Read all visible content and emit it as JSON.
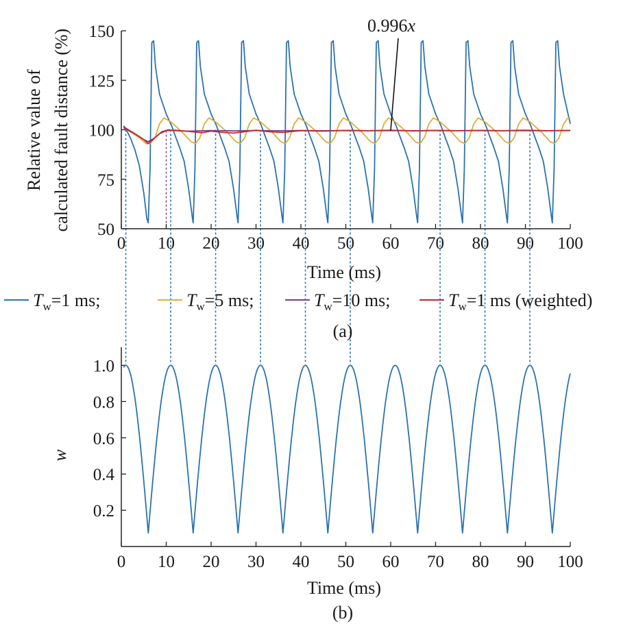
{
  "chart_data": [
    {
      "panel": "(a)",
      "type": "line",
      "xlabel": "Time (ms)",
      "ylabel_line1": "Relative value of",
      "ylabel_line2": "calculated fault distance (%)",
      "xlim": [
        0,
        100
      ],
      "ylim": [
        50,
        150
      ],
      "xticks": [
        0,
        10,
        20,
        30,
        40,
        50,
        60,
        70,
        80,
        90,
        100
      ],
      "yticks": [
        50,
        75,
        100,
        125,
        150
      ],
      "annotation": {
        "text": "0.996",
        "italic_suffix": "x",
        "points_to": [
          60,
          99.6
        ]
      },
      "series": [
        {
          "name": "Tw=1 ms",
          "label_main": "T",
          "label_sub": "w",
          "label_rest": "=1 ms;",
          "color": "#2a72b0",
          "points": [
            [
              0.5,
              102
            ],
            [
              1,
              100.5
            ],
            [
              2,
              96
            ],
            [
              3,
              90
            ],
            [
              4,
              82
            ],
            [
              5,
              68
            ],
            [
              5.7,
              55
            ],
            [
              6,
              53
            ],
            [
              6.4,
              80
            ],
            [
              6.8,
              144
            ],
            [
              7.2,
              145
            ],
            [
              7.6,
              132
            ],
            [
              8.5,
              118
            ],
            [
              10,
              108
            ],
            [
              11.2,
              102
            ],
            [
              12,
              97
            ],
            [
              13,
              91
            ],
            [
              14,
              84
            ],
            [
              15,
              70
            ],
            [
              15.8,
              56
            ],
            [
              16,
              53
            ],
            [
              16.4,
              80
            ],
            [
              16.8,
              144
            ],
            [
              17.2,
              145
            ],
            [
              17.6,
              132
            ],
            [
              18.5,
              118
            ],
            [
              20,
              108
            ],
            [
              21.2,
              102
            ],
            [
              22,
              97
            ],
            [
              23,
              91
            ],
            [
              24,
              84
            ],
            [
              25,
              70
            ],
            [
              25.8,
              56
            ],
            [
              26,
              53
            ],
            [
              26.4,
              80
            ],
            [
              26.8,
              144
            ],
            [
              27.2,
              145
            ],
            [
              27.6,
              132
            ],
            [
              28.5,
              118
            ],
            [
              30,
              108
            ],
            [
              31.2,
              102
            ],
            [
              32,
              97
            ],
            [
              33,
              91
            ],
            [
              34,
              84
            ],
            [
              35,
              70
            ],
            [
              35.8,
              56
            ],
            [
              36,
              53
            ],
            [
              36.4,
              80
            ],
            [
              36.8,
              144
            ],
            [
              37.2,
              145
            ],
            [
              37.6,
              132
            ],
            [
              38.5,
              118
            ],
            [
              40,
              108
            ],
            [
              41.2,
              102
            ],
            [
              42,
              97
            ],
            [
              43,
              91
            ],
            [
              44,
              84
            ],
            [
              45,
              70
            ],
            [
              45.8,
              56
            ],
            [
              46,
              53
            ],
            [
              46.4,
              80
            ],
            [
              46.8,
              144
            ],
            [
              47.2,
              145
            ],
            [
              47.6,
              132
            ],
            [
              48.5,
              118
            ],
            [
              50,
              108
            ],
            [
              51.2,
              102
            ],
            [
              52,
              97
            ],
            [
              53,
              91
            ],
            [
              54,
              84
            ],
            [
              55,
              70
            ],
            [
              55.8,
              56
            ],
            [
              56,
              53
            ],
            [
              56.4,
              80
            ],
            [
              56.8,
              144
            ],
            [
              57.2,
              145
            ],
            [
              57.6,
              132
            ],
            [
              58.5,
              118
            ],
            [
              60,
              108
            ],
            [
              61.2,
              102
            ],
            [
              62,
              97
            ],
            [
              63,
              91
            ],
            [
              64,
              84
            ],
            [
              65,
              70
            ],
            [
              65.8,
              56
            ],
            [
              66,
              53
            ],
            [
              66.4,
              80
            ],
            [
              66.8,
              144
            ],
            [
              67.2,
              145
            ],
            [
              67.6,
              132
            ],
            [
              68.5,
              118
            ],
            [
              70,
              108
            ],
            [
              71.2,
              102
            ],
            [
              72,
              97
            ],
            [
              73,
              91
            ],
            [
              74,
              84
            ],
            [
              75,
              70
            ],
            [
              75.8,
              56
            ],
            [
              76,
              53
            ],
            [
              76.4,
              80
            ],
            [
              76.8,
              144
            ],
            [
              77.2,
              145
            ],
            [
              77.6,
              132
            ],
            [
              78.5,
              118
            ],
            [
              80,
              108
            ],
            [
              81.2,
              102
            ],
            [
              82,
              97
            ],
            [
              83,
              91
            ],
            [
              84,
              84
            ],
            [
              85,
              70
            ],
            [
              85.8,
              56
            ],
            [
              86,
              53
            ],
            [
              86.4,
              80
            ],
            [
              86.8,
              144
            ],
            [
              87.2,
              145
            ],
            [
              87.6,
              132
            ],
            [
              88.5,
              118
            ],
            [
              90,
              108
            ],
            [
              91.2,
              102
            ],
            [
              92,
              97
            ],
            [
              93,
              91
            ],
            [
              94,
              84
            ],
            [
              95,
              70
            ],
            [
              95.8,
              56
            ],
            [
              96,
              53
            ],
            [
              96.4,
              80
            ],
            [
              96.8,
              144
            ],
            [
              97.2,
              145
            ],
            [
              97.6,
              132
            ],
            [
              98.5,
              118
            ],
            [
              100,
              103
            ]
          ]
        },
        {
          "name": "Tw=5 ms",
          "label_main": "T",
          "label_sub": "w",
          "label_rest": "=5 ms;",
          "color": "#e0ac3a",
          "points": [
            [
              0.5,
              101
            ],
            [
              2,
              99
            ],
            [
              4,
              96
            ],
            [
              5.5,
              93
            ],
            [
              6.5,
              93
            ],
            [
              7.5,
              96
            ],
            [
              8.5,
              103
            ],
            [
              9.5,
              106
            ],
            [
              11,
              104
            ],
            [
              13.5,
              99
            ],
            [
              15.5,
              94
            ],
            [
              16.5,
              93
            ],
            [
              17.5,
              96
            ],
            [
              18.5,
              103
            ],
            [
              19.5,
              106
            ],
            [
              21,
              104
            ],
            [
              23.5,
              99
            ],
            [
              25.5,
              94
            ],
            [
              26.5,
              93
            ],
            [
              27.5,
              96
            ],
            [
              28.5,
              103
            ],
            [
              29.5,
              106
            ],
            [
              31,
              104
            ],
            [
              33.5,
              99
            ],
            [
              35.5,
              94
            ],
            [
              36.5,
              93
            ],
            [
              37.5,
              96
            ],
            [
              38.5,
              103
            ],
            [
              39.5,
              106
            ],
            [
              41,
              104
            ],
            [
              43.5,
              99
            ],
            [
              45.5,
              94
            ],
            [
              46.5,
              93
            ],
            [
              47.5,
              96
            ],
            [
              48.5,
              103
            ],
            [
              49.5,
              106
            ],
            [
              51,
              104
            ],
            [
              53.5,
              99
            ],
            [
              55.5,
              94
            ],
            [
              56.5,
              93
            ],
            [
              57.5,
              96
            ],
            [
              58.5,
              103
            ],
            [
              59.5,
              106
            ],
            [
              61,
              104
            ],
            [
              63.5,
              99
            ],
            [
              65.5,
              94
            ],
            [
              66.5,
              93
            ],
            [
              67.5,
              96
            ],
            [
              68.5,
              103
            ],
            [
              69.5,
              106
            ],
            [
              71,
              104
            ],
            [
              73.5,
              99
            ],
            [
              75.5,
              94
            ],
            [
              76.5,
              93
            ],
            [
              77.5,
              96
            ],
            [
              78.5,
              103
            ],
            [
              79.5,
              106
            ],
            [
              81,
              104
            ],
            [
              83.5,
              99
            ],
            [
              85.5,
              94
            ],
            [
              86.5,
              93
            ],
            [
              87.5,
              96
            ],
            [
              88.5,
              103
            ],
            [
              89.5,
              106
            ],
            [
              91,
              104
            ],
            [
              93.5,
              99
            ],
            [
              95.5,
              94
            ],
            [
              96.5,
              93
            ],
            [
              97.5,
              96
            ],
            [
              98.5,
              103
            ],
            [
              99.5,
              106
            ],
            [
              100,
              106
            ]
          ]
        },
        {
          "name": "Tw=10 ms",
          "label_main": "T",
          "label_sub": "w",
          "label_rest": "=10 ms;",
          "color": "#7a3d8c",
          "points": [
            [
              0.5,
              101
            ],
            [
              3,
              98
            ],
            [
              5,
              95
            ],
            [
              6,
              94
            ],
            [
              7.5,
              96
            ],
            [
              9,
              99
            ],
            [
              10.5,
              100
            ],
            [
              12,
              99.5
            ],
            [
              15,
              99.3
            ],
            [
              20,
              99.6
            ],
            [
              25,
              99.4
            ],
            [
              30,
              99.6
            ],
            [
              35,
              99.5
            ],
            [
              40,
              99.6
            ],
            [
              45,
              99.5
            ],
            [
              50,
              99.6
            ],
            [
              55,
              99.5
            ],
            [
              60,
              99.6
            ],
            [
              65,
              99.5
            ],
            [
              70,
              99.6
            ],
            [
              75,
              99.5
            ],
            [
              80,
              99.6
            ],
            [
              85,
              99.5
            ],
            [
              90,
              99.6
            ],
            [
              95,
              99.5
            ],
            [
              100,
              99.6
            ]
          ]
        },
        {
          "name": "Tw=1 ms (weighted)",
          "label_main": "T",
          "label_sub": "w",
          "label_rest": "=1 ms (weighted)",
          "color": "#c0282d",
          "points": [
            [
              0.5,
              101.5
            ],
            [
              3,
              98
            ],
            [
              5,
              95
            ],
            [
              6,
              93
            ],
            [
              7,
              95
            ],
            [
              8.5,
              98
            ],
            [
              10,
              99.6
            ],
            [
              12,
              99.8
            ],
            [
              15,
              99.2
            ],
            [
              18,
              98.5
            ],
            [
              20,
              99.3
            ],
            [
              22,
              98.8
            ],
            [
              25,
              98.3
            ],
            [
              28,
              99.2
            ],
            [
              30,
              99.8
            ],
            [
              33,
              99
            ],
            [
              36,
              98.7
            ],
            [
              40,
              99.6
            ],
            [
              45,
              99.3
            ],
            [
              50,
              99.7
            ],
            [
              55,
              99.5
            ],
            [
              60,
              99.8
            ],
            [
              65,
              99.4
            ],
            [
              70,
              99.7
            ],
            [
              75,
              99.5
            ],
            [
              80,
              99.7
            ],
            [
              85,
              99.5
            ],
            [
              90,
              99.8
            ],
            [
              95,
              99.5
            ],
            [
              100,
              99.7
            ]
          ]
        }
      ],
      "marker_lines_x": [
        1,
        11,
        21,
        31,
        41,
        51,
        71,
        81,
        91
      ],
      "red_marker_x": 10
    },
    {
      "panel": "(b)",
      "type": "line",
      "xlabel": "Time (ms)",
      "ylabel": "w",
      "xlim": [
        0,
        100
      ],
      "ylim": [
        0,
        1.1
      ],
      "xticks": [
        0,
        10,
        20,
        30,
        40,
        50,
        60,
        70,
        80,
        90,
        100
      ],
      "yticks": [
        0.2,
        0.4,
        0.6,
        0.8,
        1.0
      ],
      "ytick_labels": [
        "0.2",
        "0.4",
        "0.6",
        "0.8",
        "1.0"
      ],
      "series": [
        {
          "name": "w",
          "color": "#2a72b0",
          "formula": "w = 0.075 + 0.925 * |cos(pi * (t - 1) / 10)|",
          "x_range": [
            0.5,
            100
          ],
          "min": 0.075,
          "max": 1.0,
          "period_ms": 10,
          "peak_at": 1
        }
      ]
    }
  ]
}
